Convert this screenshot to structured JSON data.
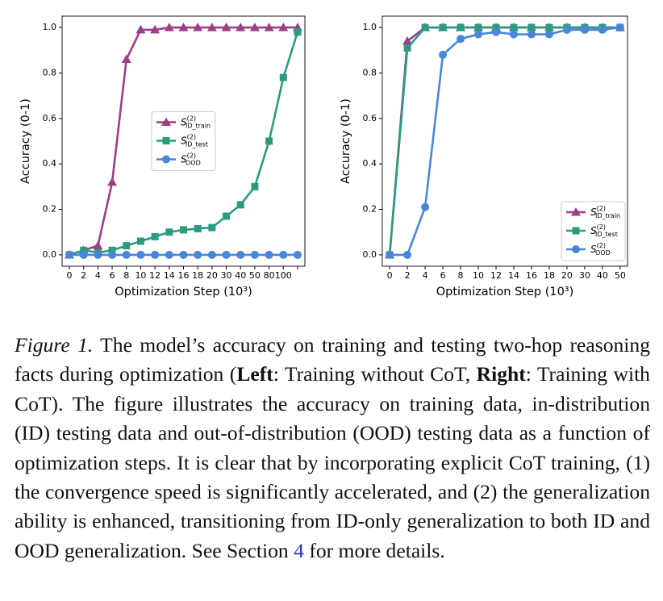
{
  "chart_data": [
    {
      "type": "line",
      "ylabel": "Accuracy (0-1)",
      "xlabel": "Optimization Step (10³)",
      "categories": [
        "0",
        "2",
        "4",
        "6",
        "8",
        "10",
        "12",
        "14",
        "16",
        "18",
        "20",
        "30",
        "40",
        "50",
        "80",
        "100",
        null
      ],
      "ylim": [
        -0.05,
        1.05
      ],
      "yticks": [
        {
          "value": 0,
          "label": "0.0"
        },
        {
          "value": 0.2,
          "label": "0.2"
        },
        {
          "value": 0.4,
          "label": "0.4"
        },
        {
          "value": 0.6,
          "label": "0.6"
        },
        {
          "value": 0.8,
          "label": "0.8"
        },
        {
          "value": 1,
          "label": "1.0"
        }
      ],
      "grid": false,
      "legend": "center",
      "series": [
        {
          "name": "S",
          "name_sup": "(2)",
          "name_sub": "ID_train",
          "color": "#9b3f86",
          "marker": "triangle",
          "values": [
            0,
            0.02,
            0.04,
            0.32,
            0.86,
            0.99,
            0.99,
            1,
            1,
            1,
            1,
            1,
            1,
            1,
            1,
            1,
            1
          ]
        },
        {
          "name": "S",
          "name_sup": "(2)",
          "name_sub": "ID_test",
          "color": "#2a9b7e",
          "marker": "square",
          "values": [
            0,
            0.02,
            0.01,
            0.02,
            0.04,
            0.06,
            0.08,
            0.1,
            0.11,
            0.115,
            0.12,
            0.17,
            0.22,
            0.3,
            0.5,
            0.78,
            0.98
          ]
        },
        {
          "name": "S",
          "name_sup": "(2)",
          "name_sub": "OOD",
          "color": "#4a86d8",
          "marker": "circle",
          "values": [
            0,
            0,
            0,
            0,
            0,
            0,
            0,
            0,
            0,
            0,
            0,
            0,
            0,
            0,
            0,
            0,
            0
          ]
        }
      ]
    },
    {
      "type": "line",
      "ylabel": "Accuracy (0-1)",
      "xlabel": "Optimization Step (10³)",
      "categories": [
        "0",
        "2",
        "4",
        "6",
        "8",
        "10",
        "12",
        "14",
        "16",
        "18",
        "20",
        "30",
        "40",
        "50"
      ],
      "ylim": [
        -0.05,
        1.05
      ],
      "yticks": [
        {
          "value": 0,
          "label": "0.0"
        },
        {
          "value": 0.2,
          "label": "0.2"
        },
        {
          "value": 0.4,
          "label": "0.4"
        },
        {
          "value": 0.6,
          "label": "0.6"
        },
        {
          "value": 0.8,
          "label": "0.8"
        },
        {
          "value": 1,
          "label": "1.0"
        }
      ],
      "grid": false,
      "legend": "lower right",
      "series": [
        {
          "name": "S",
          "name_sup": "(2)",
          "name_sub": "ID_train",
          "color": "#9b3f86",
          "marker": "triangle",
          "values": [
            0,
            0.94,
            1,
            1,
            1,
            1,
            1,
            1,
            1,
            1,
            1,
            1,
            1,
            1
          ]
        },
        {
          "name": "S",
          "name_sup": "(2)",
          "name_sub": "ID_test",
          "color": "#2a9b7e",
          "marker": "square",
          "values": [
            0,
            0.91,
            1,
            1,
            1,
            1,
            1,
            1,
            1,
            1,
            1,
            1,
            1,
            1
          ]
        },
        {
          "name": "S",
          "name_sup": "(2)",
          "name_sub": "OOD",
          "color": "#4a86d8",
          "marker": "circle",
          "values": [
            0,
            0,
            0.21,
            0.88,
            0.95,
            0.97,
            0.98,
            0.97,
            0.97,
            0.97,
            0.99,
            0.99,
            0.99,
            1
          ]
        }
      ]
    }
  ],
  "caption": {
    "runs": [
      {
        "text": "Figure 1.",
        "style": "italic"
      },
      {
        "text": " The model’s accuracy on training and testing two-hop reasoning facts during optimization (",
        "style": "plain"
      },
      {
        "text": "Left",
        "style": "bold"
      },
      {
        "text": ": Training without CoT, ",
        "style": "plain"
      },
      {
        "text": "Right",
        "style": "bold"
      },
      {
        "text": ": Training with CoT). The figure illustrates the accuracy on training data, in-distribution (ID) testing data and out-of-distribution (OOD) testing data as a function of optimization steps. It is clear that by incorporating explicit CoT training, (1) the convergence speed is significantly accelerated, and (2) the generalization ability is enhanced, transitioning from ID-only generalization to both ID and OOD generalization. See Section ",
        "style": "plain"
      },
      {
        "text": "4",
        "style": "link"
      },
      {
        "text": " for more details.",
        "style": "plain"
      }
    ]
  }
}
